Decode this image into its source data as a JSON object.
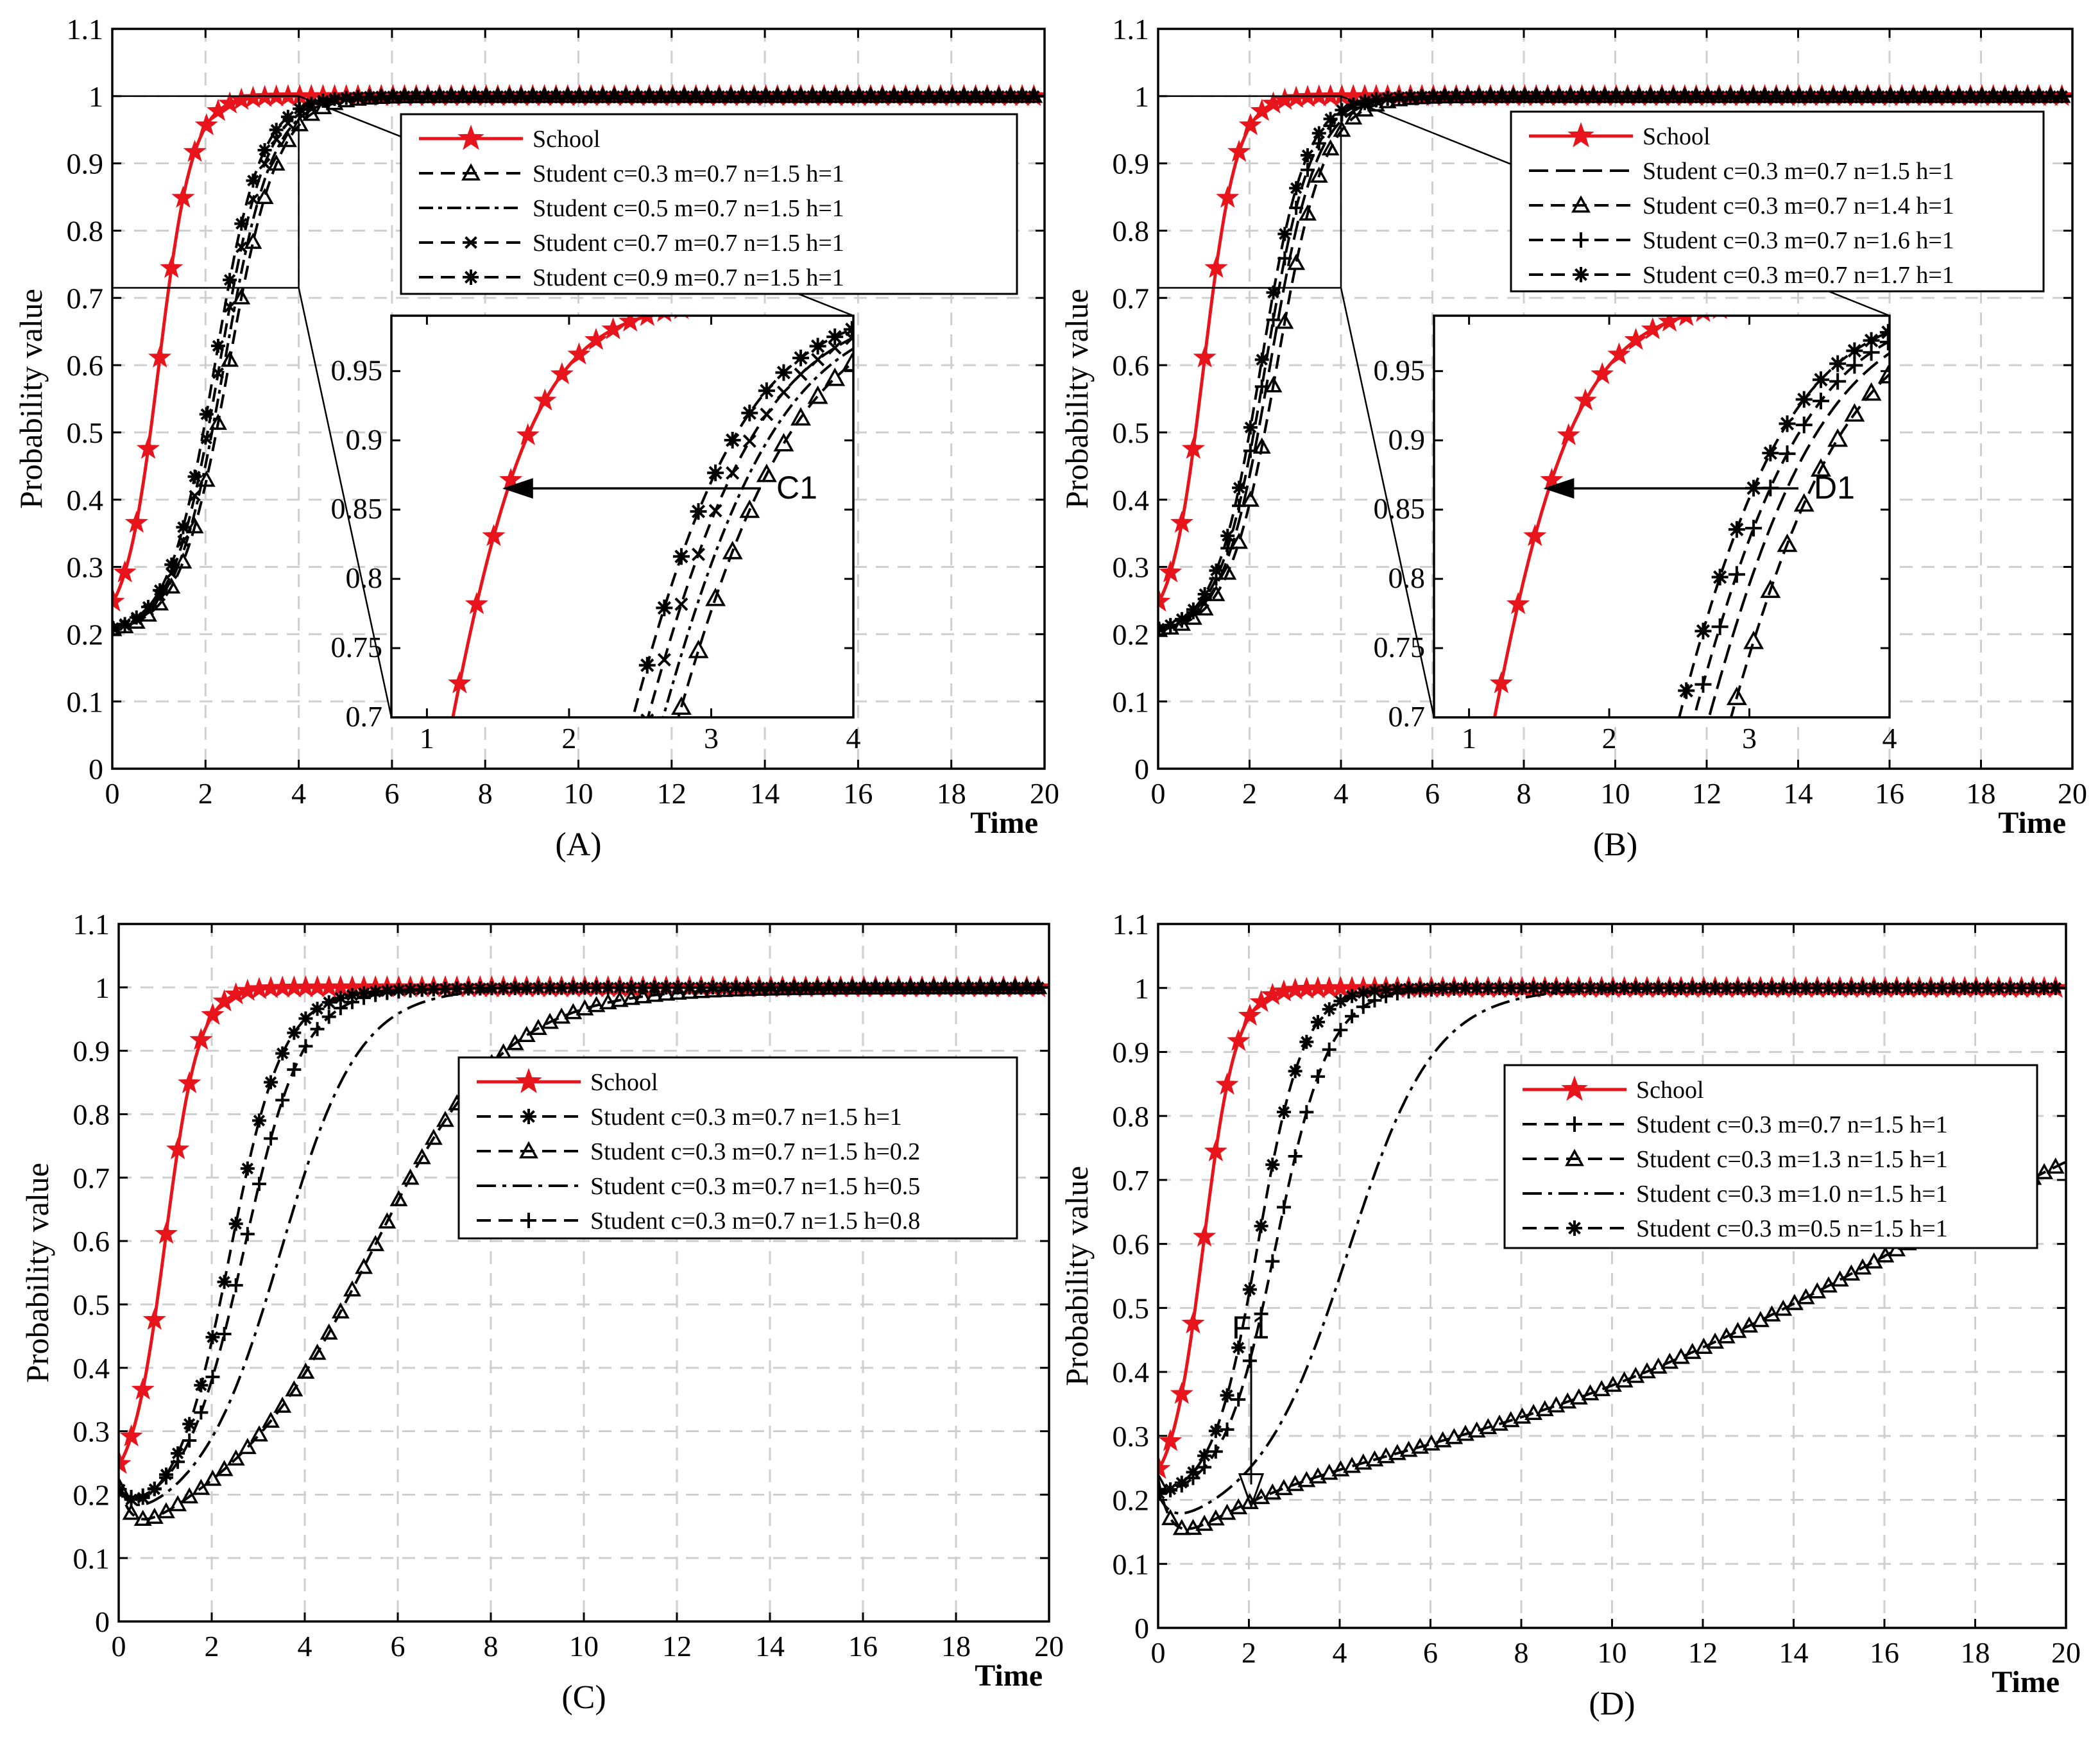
{
  "chart_data": [
    {
      "type": "line",
      "panel_label": "(A)",
      "xlabel": "Time",
      "ylabel": "Probability value",
      "xlim": [
        0,
        20
      ],
      "ylim": [
        0,
        1.1
      ],
      "xticks": [
        "0",
        "2",
        "4",
        "6",
        "8",
        "10",
        "12",
        "14",
        "16",
        "18",
        "20"
      ],
      "yticks": [
        "0",
        "0.1",
        "0.2",
        "0.3",
        "0.4",
        "0.5",
        "0.6",
        "0.7",
        "0.8",
        "0.9",
        "1",
        "1.1"
      ],
      "grid": true,
      "legend": [
        "School",
        "Student  c=0.3 m=0.7 n=1.5 h=1",
        "Student  c=0.5 m=0.7 n=1.5 h=1",
        "Student  c=0.7 m=0.7 n=1.5 h=1",
        "Student  c=0.9 m=0.7 n=1.5 h=1"
      ],
      "series": [
        {
          "name": "School",
          "t0": 0.2,
          "t1": 1.0,
          "x0": 1.0,
          "sl": 2.8,
          "dip": 0
        },
        {
          "name": "c=0.3",
          "t0": 0.2,
          "t1": 1.0,
          "x0": 2.5,
          "sl": 1.9,
          "dip": 0
        },
        {
          "name": "c=0.5",
          "t0": 0.2,
          "t1": 1.0,
          "x0": 2.4,
          "sl": 1.95,
          "dip": 0
        },
        {
          "name": "c=0.7",
          "t0": 0.2,
          "t1": 1.0,
          "x0": 2.3,
          "sl": 2.0,
          "dip": 0
        },
        {
          "name": "c=0.9",
          "t0": 0.2,
          "t1": 1.0,
          "x0": 2.2,
          "sl": 2.05,
          "dip": 0
        }
      ],
      "inset": {
        "label": "C1",
        "xlim": [
          0.75,
          4
        ],
        "ylim": [
          0.7,
          0.99
        ],
        "xticks": [
          "1",
          "2",
          "3",
          "4"
        ],
        "yticks": [
          "0.7",
          "0.75",
          "0.8",
          "0.85",
          "0.9",
          "0.95"
        ],
        "zoom_xlim": [
          0,
          4
        ],
        "zoom_ylim": [
          0.715,
          1.0
        ]
      }
    },
    {
      "type": "line",
      "panel_label": "(B)",
      "xlabel": "Time",
      "ylabel": "Probability value",
      "xlim": [
        0,
        20
      ],
      "ylim": [
        0,
        1.1
      ],
      "xticks": [
        "0",
        "2",
        "4",
        "6",
        "8",
        "10",
        "12",
        "14",
        "16",
        "18",
        "20"
      ],
      "yticks": [
        "0",
        "0.1",
        "0.2",
        "0.3",
        "0.4",
        "0.5",
        "0.6",
        "0.7",
        "0.8",
        "0.9",
        "1",
        "1.1"
      ],
      "grid": true,
      "legend": [
        "School",
        "Student  c=0.3 m=0.7 n=1.5 h=1",
        "Student  c=0.3 m=0.7 n=1.4 h=1",
        "Student  c=0.3 m=0.7 n=1.6 h=1",
        "Student  c=0.3 m=0.7 n=1.7 h=1"
      ],
      "series": [
        {
          "name": "School",
          "t0": 0.2,
          "t1": 1.0,
          "x0": 1.0,
          "sl": 2.8,
          "dip": 0
        },
        {
          "name": "n=1.5",
          "t0": 0.2,
          "t1": 1.0,
          "x0": 2.45,
          "sl": 1.95,
          "dip": 0
        },
        {
          "name": "n=1.4",
          "t0": 0.2,
          "t1": 1.0,
          "x0": 2.6,
          "sl": 1.9,
          "dip": 0
        },
        {
          "name": "n=1.6",
          "t0": 0.2,
          "t1": 1.0,
          "x0": 2.35,
          "sl": 2.0,
          "dip": 0
        },
        {
          "name": "n=1.7",
          "t0": 0.2,
          "t1": 1.0,
          "x0": 2.25,
          "sl": 2.05,
          "dip": 0
        }
      ],
      "inset": {
        "label": "D1",
        "xlim": [
          0.75,
          4
        ],
        "ylim": [
          0.7,
          0.99
        ],
        "xticks": [
          "1",
          "2",
          "3",
          "4"
        ],
        "yticks": [
          "0.7",
          "0.75",
          "0.8",
          "0.85",
          "0.9",
          "0.95"
        ],
        "zoom_xlim": [
          0,
          4
        ],
        "zoom_ylim": [
          0.715,
          1.0
        ]
      }
    },
    {
      "type": "line",
      "panel_label": "(C)",
      "xlabel": "Time",
      "ylabel": "Probability value",
      "xlim": [
        0,
        20
      ],
      "ylim": [
        0,
        1.1
      ],
      "xticks": [
        "0",
        "2",
        "4",
        "6",
        "8",
        "10",
        "12",
        "14",
        "16",
        "18",
        "20"
      ],
      "yticks": [
        "0",
        "0.1",
        "0.2",
        "0.3",
        "0.4",
        "0.5",
        "0.6",
        "0.7",
        "0.8",
        "0.9",
        "1",
        "1.1"
      ],
      "grid": true,
      "legend": [
        "School",
        "Student  c=0.3 m=0.7 n=1.5 h=1",
        "Student  c=0.3 m=0.7 n=1.5 h=0.2",
        "Student  c=0.3 m=0.7 n=1.5 h=0.5",
        "Student  c=0.3 m=0.7 n=1.5 h=0.8"
      ],
      "series": [
        {
          "name": "School",
          "t0": 0.2,
          "t1": 1.0,
          "x0": 1.0,
          "sl": 2.8,
          "dip": 0
        },
        {
          "name": "h=1",
          "t0": 0.2,
          "t1": 1.0,
          "x0": 2.4,
          "sl": 1.8,
          "dip": 0.05
        },
        {
          "name": "h=0.2",
          "t0": 0.2,
          "t1": 1.0,
          "x0": 5.5,
          "sl": 0.7,
          "dip": 0.1
        },
        {
          "name": "h=0.5",
          "t0": 0.2,
          "t1": 1.0,
          "x0": 3.5,
          "sl": 1.2,
          "dip": 0.06
        },
        {
          "name": "h=0.8",
          "t0": 0.2,
          "t1": 1.0,
          "x0": 2.7,
          "sl": 1.6,
          "dip": 0.04
        }
      ]
    },
    {
      "type": "line",
      "panel_label": "(D)",
      "xlabel": "Time",
      "ylabel": "Probability value",
      "xlim": [
        0,
        20
      ],
      "ylim": [
        0,
        1.1
      ],
      "xticks": [
        "0",
        "2",
        "4",
        "6",
        "8",
        "10",
        "12",
        "14",
        "16",
        "18",
        "20"
      ],
      "yticks": [
        "0",
        "0.1",
        "0.2",
        "0.3",
        "0.4",
        "0.5",
        "0.6",
        "0.7",
        "0.8",
        "0.9",
        "1",
        "1.1"
      ],
      "grid": true,
      "legend": [
        "School",
        "Student  c=0.3 m=0.7 n=1.5 h=1",
        "Student  c=0.3 m=1.3 n=1.5 h=1",
        "Student  c=0.3 m=1.0 n=1.5 h=1",
        "Student  c=0.3 m=0.5 n=1.5 h=1"
      ],
      "annotation": "F1",
      "series": [
        {
          "name": "School",
          "t0": 0.2,
          "t1": 1.0,
          "x0": 1.0,
          "sl": 2.8,
          "dip": 0
        },
        {
          "name": "m=0.7",
          "t0": 0.2,
          "t1": 1.0,
          "x0": 2.6,
          "sl": 1.7,
          "dip": 0
        },
        {
          "name": "m=1.3",
          "t0": 0.2,
          "t1": 1.0,
          "x0": 16.5,
          "sl": 0.19,
          "dip": 0.13
        },
        {
          "name": "m=1.0",
          "t0": 0.2,
          "t1": 1.0,
          "x0": 4.2,
          "sl": 1.05,
          "dip": 0.06
        },
        {
          "name": "m=0.5",
          "t0": 0.2,
          "t1": 1.0,
          "x0": 2.2,
          "sl": 2.0,
          "dip": 0
        }
      ]
    }
  ]
}
